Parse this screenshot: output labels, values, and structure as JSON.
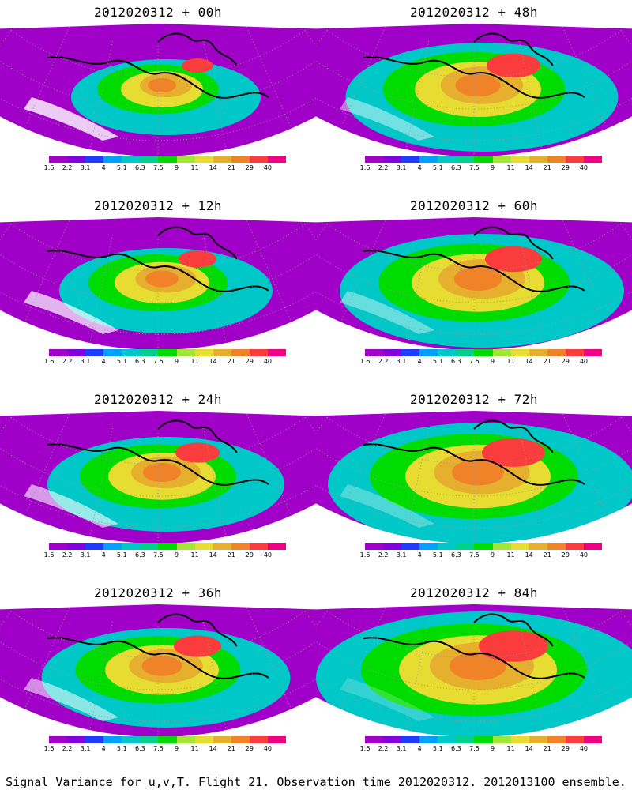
{
  "panels": [
    {
      "title": "2012020312 + 00h",
      "intensity": 0.2
    },
    {
      "title": "2012020312 + 48h",
      "intensity": 0.55
    },
    {
      "title": "2012020312 + 12h",
      "intensity": 0.3
    },
    {
      "title": "2012020312 + 60h",
      "intensity": 0.6
    },
    {
      "title": "2012020312 + 24h",
      "intensity": 0.4
    },
    {
      "title": "2012020312 + 72h",
      "intensity": 0.7
    },
    {
      "title": "2012020312 + 36h",
      "intensity": 0.45
    },
    {
      "title": "2012020312 + 84h",
      "intensity": 0.8
    }
  ],
  "colorbar": {
    "ticks": [
      "1.6",
      "2.2",
      "3.1",
      "4",
      "5.1",
      "6.3",
      "7.5",
      "9",
      "11",
      "14",
      "21",
      "29",
      "40"
    ],
    "colors": [
      "#a000c8",
      "#8200dc",
      "#1e3cff",
      "#00a0ff",
      "#00c8c8",
      "#00d28c",
      "#00dc00",
      "#a0e632",
      "#e6dc32",
      "#e6af2d",
      "#f08228",
      "#fa3c3c",
      "#f00082"
    ]
  },
  "footer": "Signal Variance for u,v,T. Flight 21. Observation time 2012020312. 2012013100 ensemble."
}
